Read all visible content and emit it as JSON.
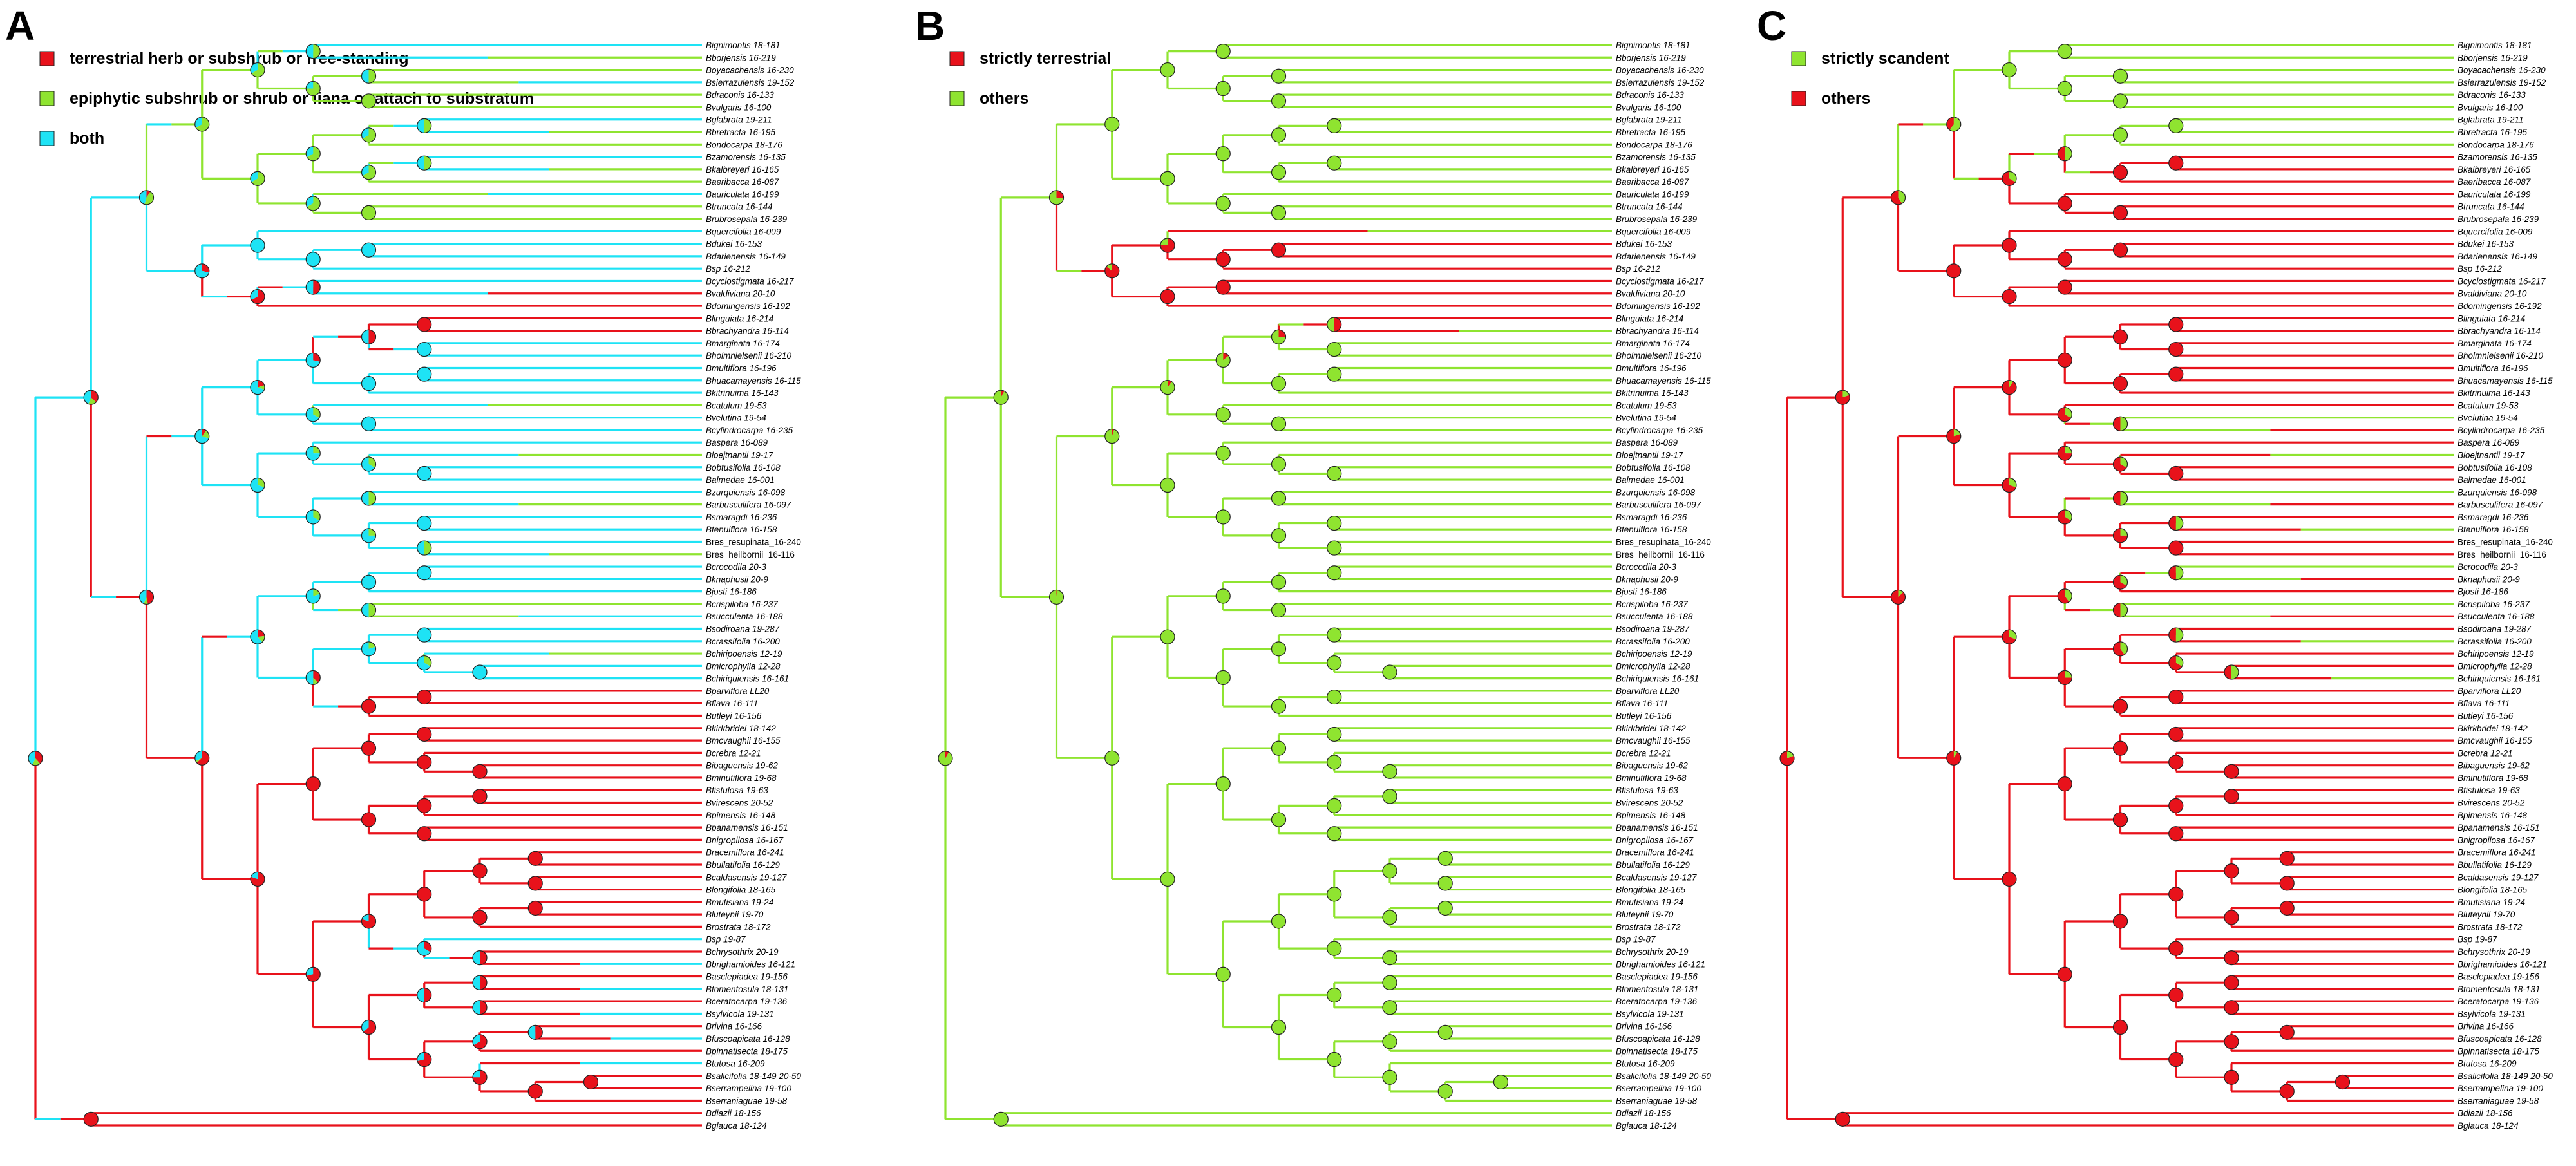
{
  "figure": {
    "colors": {
      "red": "#e8121b",
      "green": "#8fe430",
      "cyan": "#1ee3f5",
      "outline": "#222222"
    },
    "panels": [
      {
        "letter": "A",
        "legend": [
          {
            "label": "terrestrial herb or subshrub or free-standing",
            "color": "#e8121b"
          },
          {
            "label": "epiphytic subshrub or shrub or liana or attach to substratum",
            "color": "#8fe430"
          },
          {
            "label": "both",
            "color": "#1ee3f5"
          }
        ]
      },
      {
        "letter": "B",
        "legend": [
          {
            "label": "strictly terrestrial",
            "color": "#e8121b"
          },
          {
            "label": "others",
            "color": "#8fe430"
          }
        ]
      },
      {
        "letter": "C",
        "legend": [
          {
            "label": "strictly scandent",
            "color": "#8fe430"
          },
          {
            "label": "others",
            "color": "#e8121b"
          }
        ]
      }
    ],
    "taxa": [
      "Bignimontis 18-181",
      "Bborjensis 16-219",
      "Boyacachensis 16-230",
      "Bsierrazulensis 19-152",
      "Bdraconis 16-133",
      "Bvulgaris 16-100",
      "Bglabrata 19-211",
      "Bbrefracta 16-195",
      "Bondocarpa 18-176",
      "Bzamorensis 16-135",
      "Bkalbreyeri 16-165",
      "Baeribacca 16-087",
      "Bauriculata 16-199",
      "Btruncata 16-144",
      "Brubrosepala 16-239",
      "Bquercifolia 16-009",
      "Bdukei 16-153",
      "Bdarienensis 16-149",
      "Bsp 16-212",
      "Bcyclostigmata 16-217",
      "Bvaldiviana 20-10",
      "Bdomingensis 16-192",
      "Blinguiata 16-214",
      "Bbrachyandra 16-114",
      "Bmarginata 16-174",
      "Bholmnielsenii 16-210",
      "Bmultiflora 16-196",
      "Bhuacamayensis 16-115",
      "Bkitrinuima 16-143",
      "Bcatulum 19-53",
      "Bvelutina 19-54",
      "Bcylindrocarpa 16-235",
      "Baspera 16-089",
      "Bloejtnantii 19-17",
      "Bobtusifolia 16-108",
      "Balmedae 16-001",
      "Bzurquiensis 16-098",
      "Barbusculifera 16-097",
      "Bsmaragdi 16-236",
      "Btenuiflora 16-158",
      "Bres_resupinata_16-240",
      "Bres_heilbornii_16-116",
      "Bcrocodila 20-3",
      "Bknaphusii 20-9",
      "Bjosti 16-186",
      "Bcrispiloba 16-237",
      "Bsucculenta 16-188",
      "Bsodiroana 19-287",
      "Bcrassifolia 16-200",
      "Bchiripoensis 12-19",
      "Bmicrophylla 12-28",
      "Bchiriquiensis 16-161",
      "Bparviflora LL20",
      "Bflava 16-111",
      "Butleyi 16-156",
      "Bkirkbridei 18-142",
      "Bmcvaughii 16-155",
      "Bcrebra 12-21",
      "Bibaguensis 19-62",
      "Bminutiflora 19-68",
      "Bfistulosa 19-63",
      "Bvirescens 20-52",
      "Bpimensis 16-148",
      "Bpanamensis 16-151",
      "Bnigropilosa 16-167",
      "Bracemiflora 16-241",
      "Bbullatifolia 16-129",
      "Bcaldasensis 19-127",
      "Blongifolia 18-165",
      "Bmutisiana 19-24",
      "Bluteynii 19-70",
      "Brostrata 18-172",
      "Bsp 19-87",
      "Bchrysothrix 20-19",
      "Bbrighamioides 16-121",
      "Basclepiadea 19-156",
      "Btomentosula 18-131",
      "Bceratocarpa 19-136",
      "Bsylvicola 19-131",
      "Brivina 16-166",
      "Bfuscoapicata 16-128",
      "Bpinnatisecta 18-175",
      "Btutosa 16-209",
      "Bsalicifolia 18-149 20-50",
      "Bserrampelina 19-100",
      "Bserraniaguae 19-58",
      "Bdiazii 18-156",
      "Bglauca 18-124"
    ]
  }
}
